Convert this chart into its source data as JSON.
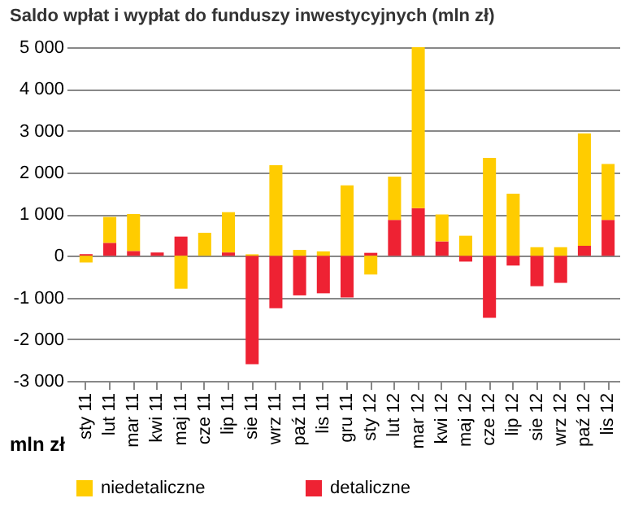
{
  "chart_data": {
    "type": "bar",
    "title": "Saldo wpłat i wypłat do funduszy inwestycyjnych (mln zł)",
    "ylabel": "mln zł",
    "categories": [
      "sty 11",
      "lut 11",
      "mar 11",
      "kwi 11",
      "maj 11",
      "cze 11",
      "lip 11",
      "sie 11",
      "wrz 11",
      "paź 11",
      "lis 11",
      "gru 11",
      "sty 12",
      "lut 12",
      "mar 12",
      "kwi 12",
      "maj 12",
      "cze 12",
      "lip 12",
      "sie 12",
      "wrz 12",
      "paź 12",
      "lis 12"
    ],
    "stacked": true,
    "series": [
      {
        "name": "detaliczne",
        "color": "#ee2233",
        "values": [
          40,
          310,
          115,
          80,
          460,
          0,
          80,
          -2600,
          -1260,
          -950,
          -900,
          -1000,
          70,
          860,
          1140,
          345,
          -140,
          -1490,
          -235,
          -730,
          -650,
          240,
          860
        ]
      },
      {
        "name": "niedetaliczne",
        "color": "#ffcc00",
        "values": [
          -160,
          620,
          885,
          0,
          -790,
          550,
          965,
          35,
          2170,
          140,
          105,
          1690,
          -450,
          1040,
          3860,
          645,
          480,
          2345,
          1490,
          205,
          205,
          2690,
          1340
        ]
      }
    ],
    "ylim": [
      -3000,
      5000
    ],
    "yticks": [
      {
        "value": -3000,
        "label": "-3 000"
      },
      {
        "value": -2000,
        "label": "-2 000"
      },
      {
        "value": -1000,
        "label": "-1 000"
      },
      {
        "value": 0,
        "label": "0"
      },
      {
        "value": 1000,
        "label": "1 000"
      },
      {
        "value": 2000,
        "label": "2 000"
      },
      {
        "value": 3000,
        "label": "3 000"
      },
      {
        "value": 4000,
        "label": "4 000"
      },
      {
        "value": 5000,
        "label": "5 000"
      }
    ],
    "grid": "y",
    "legend": "bottom"
  }
}
